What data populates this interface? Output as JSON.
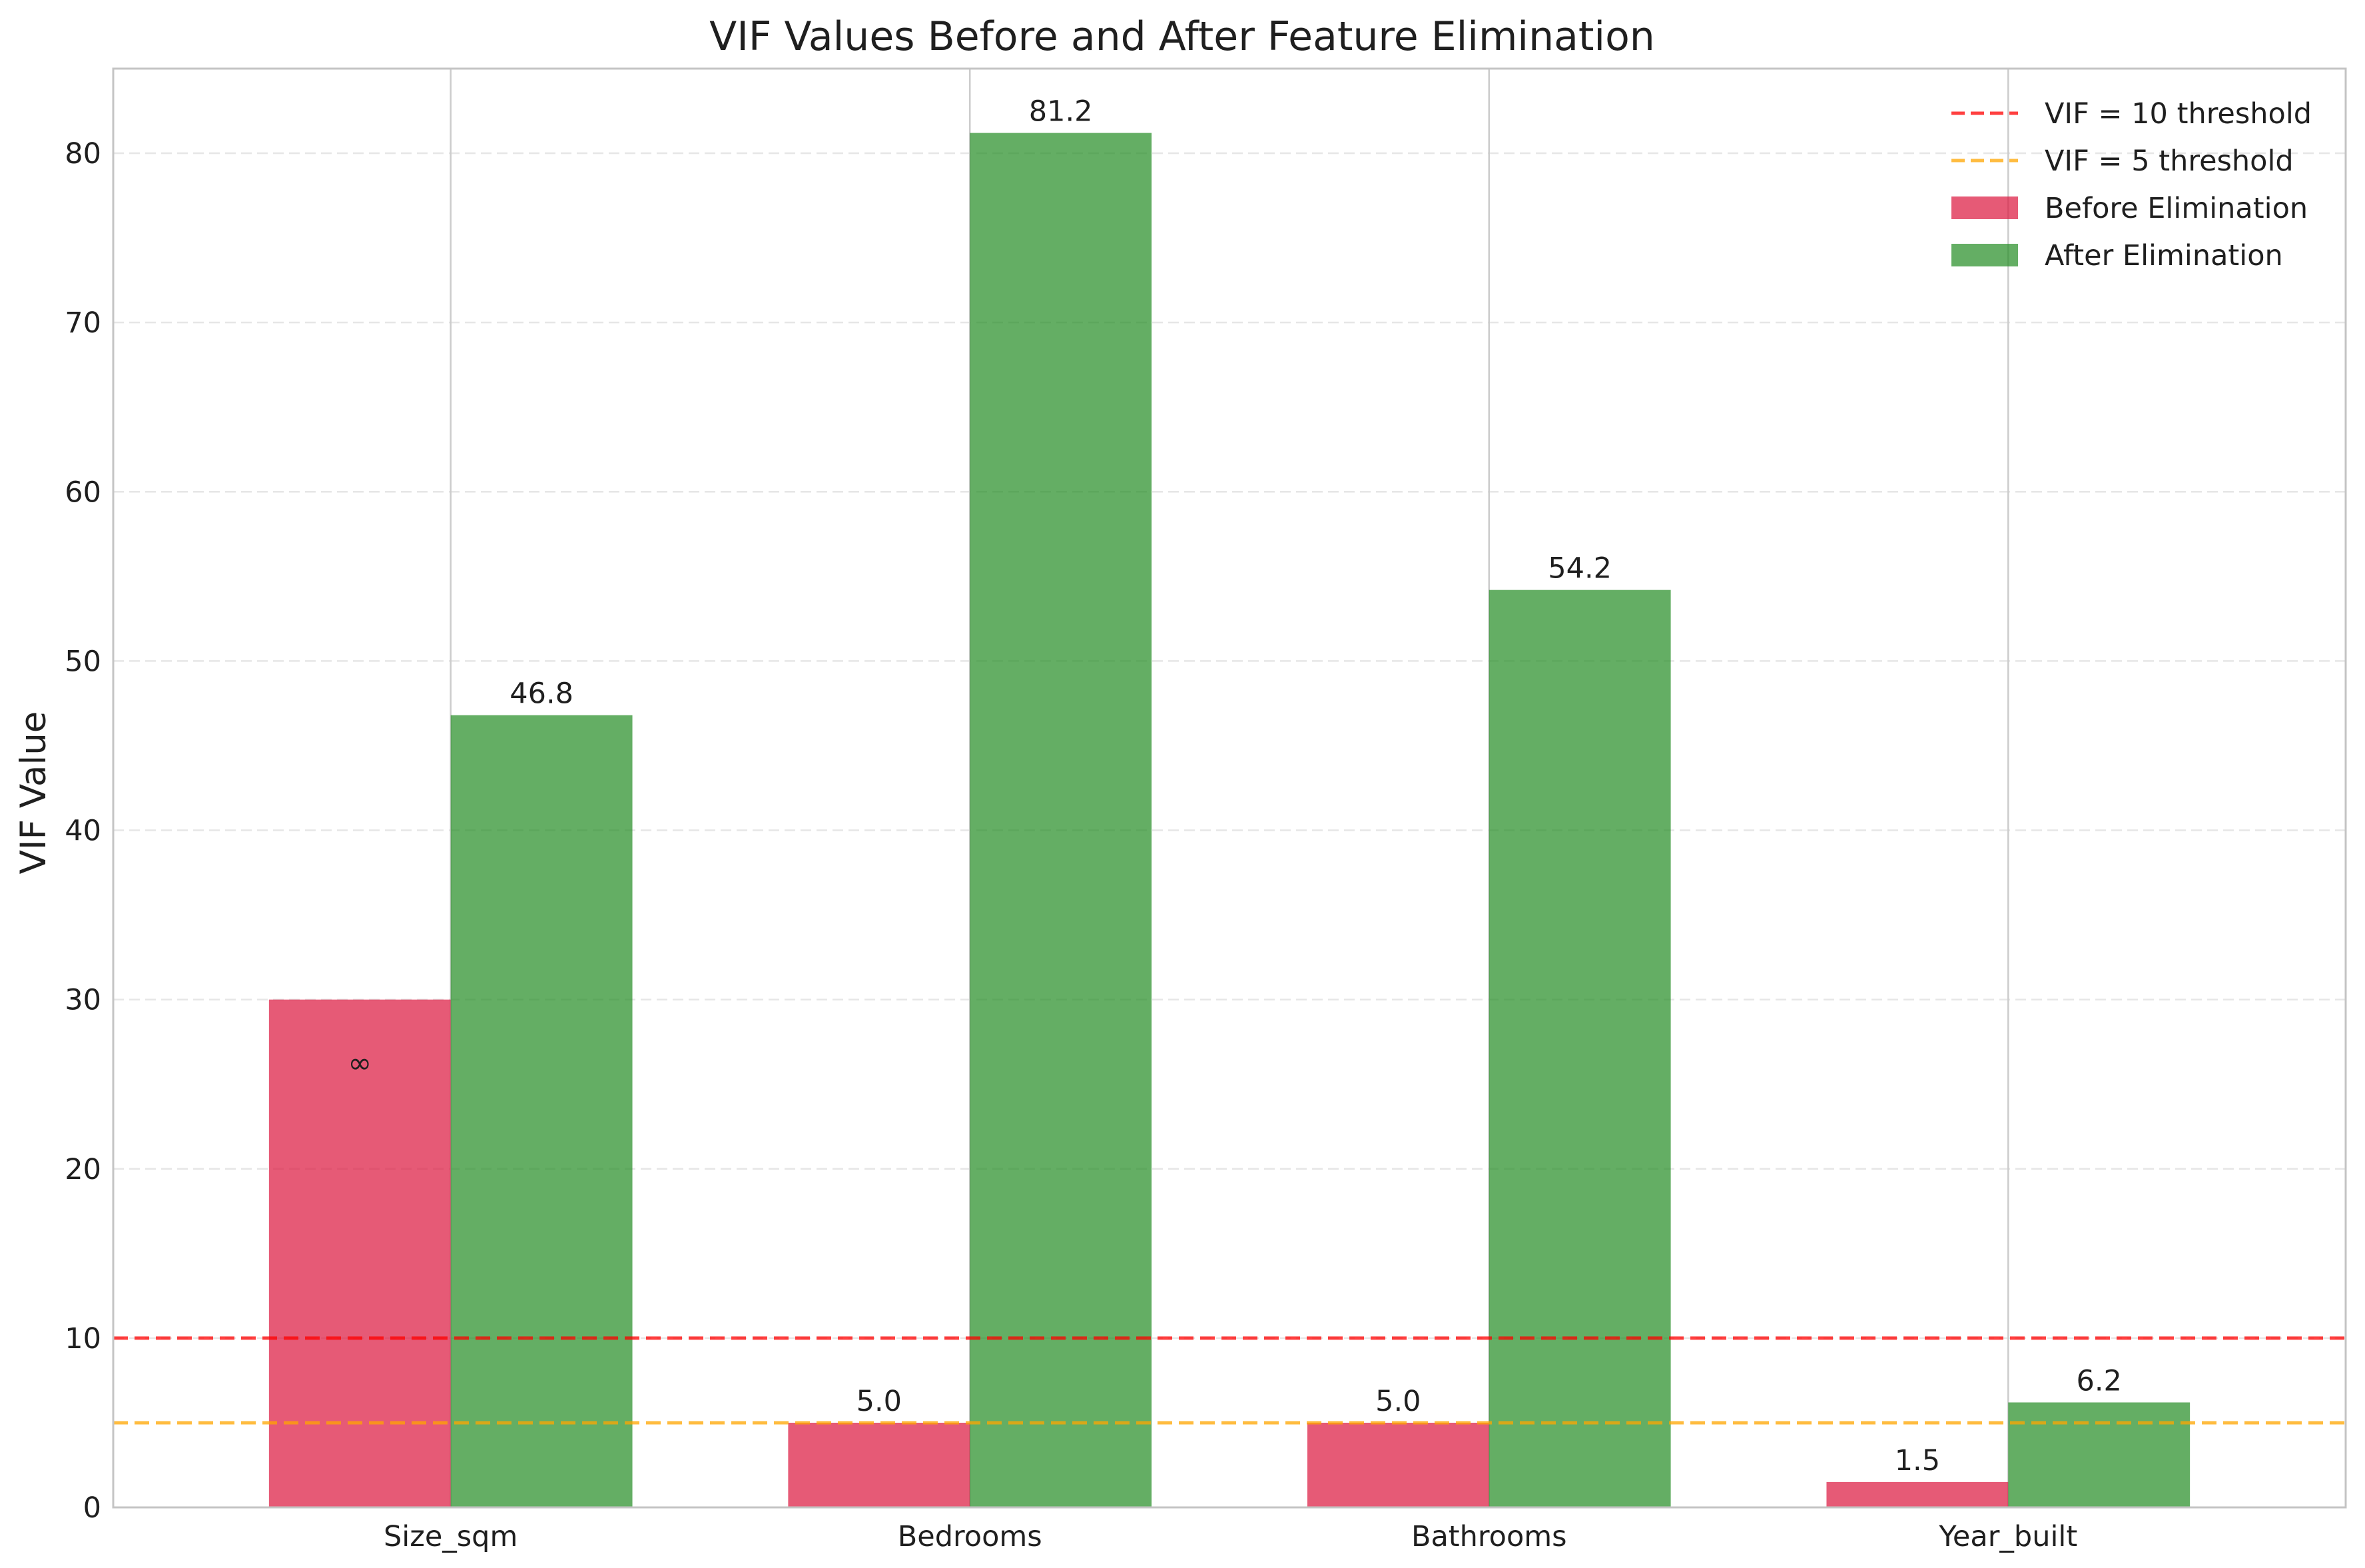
{
  "chart_data": {
    "type": "bar",
    "title": "VIF Values Before and After Feature Elimination",
    "xlabel": "",
    "ylabel": "VIF Value",
    "categories": [
      "Size_sqm",
      "Bedrooms",
      "Bathrooms",
      "Year_built"
    ],
    "series": [
      {
        "name": "Before Elimination",
        "color": "#DC143C",
        "values": [
          30,
          5.0,
          5.0,
          1.5
        ],
        "labels": [
          "∞",
          "5.0",
          "5.0",
          "1.5"
        ]
      },
      {
        "name": "After Elimination",
        "color": "#228B22",
        "values": [
          46.8,
          81.2,
          54.2,
          6.2
        ],
        "labels": [
          "46.8",
          "81.2",
          "54.2",
          "6.2"
        ]
      }
    ],
    "reference_lines": [
      {
        "name": "VIF = 10 threshold",
        "value": 10,
        "color": "#FF0000",
        "style": "dashed"
      },
      {
        "name": "VIF = 5 threshold",
        "value": 5,
        "color": "#FFA500",
        "style": "dashed"
      }
    ],
    "ylim": [
      0,
      85
    ],
    "yticks": [
      0,
      10,
      20,
      30,
      40,
      50,
      60,
      70,
      80
    ],
    "grid": true,
    "legend_position": "top-right"
  }
}
